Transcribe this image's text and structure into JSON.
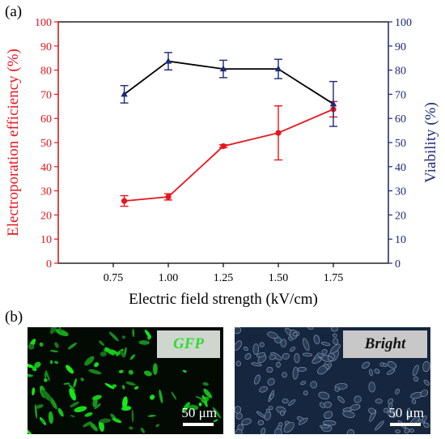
{
  "panels": {
    "a_label": "(a)",
    "b_label": "(b)"
  },
  "colors": {
    "efficiency": "#e8141c",
    "viability": "#1c2a78",
    "viability_line": "#000000"
  },
  "chart_data": {
    "type": "line",
    "xlabel": "Electric field strength (kV/cm)",
    "ylabel_left": "Electroporation efficiency (%)",
    "ylabel_right": "Viability (%)",
    "x": [
      0.75,
      1.0,
      1.25,
      1.5,
      1.75
    ],
    "x_tick_labels": [
      "0.75",
      "1.00",
      "1.25",
      "1.50",
      "1.75"
    ],
    "xlim": [
      0.5,
      2.0
    ],
    "ylim_left": [
      0,
      100
    ],
    "ylim_right": [
      0,
      100
    ],
    "y_ticks": [
      0,
      10,
      20,
      30,
      40,
      50,
      60,
      70,
      80,
      90,
      100
    ],
    "grid": false,
    "series": [
      {
        "axis": "left",
        "marker": "circle",
        "x": [
          0.8,
          1.0,
          1.25,
          1.5,
          1.75
        ],
        "values": [
          25.8,
          27.5,
          48.5,
          54,
          63.8
        ],
        "errors": [
          2.2,
          1.3,
          0.6,
          11.2,
          3.2
        ]
      },
      {
        "axis": "right",
        "marker": "triangle",
        "x": [
          0.8,
          1.0,
          1.25,
          1.5,
          1.75
        ],
        "values": [
          70,
          83.7,
          80.5,
          80.5,
          66
        ],
        "errors": [
          3.6,
          3.6,
          3.6,
          4.0,
          9.3
        ]
      }
    ]
  },
  "images": {
    "gfp": {
      "tag": "GFP",
      "scale": "50 μm"
    },
    "bright": {
      "tag": "Bright",
      "scale": "50 μm"
    }
  }
}
